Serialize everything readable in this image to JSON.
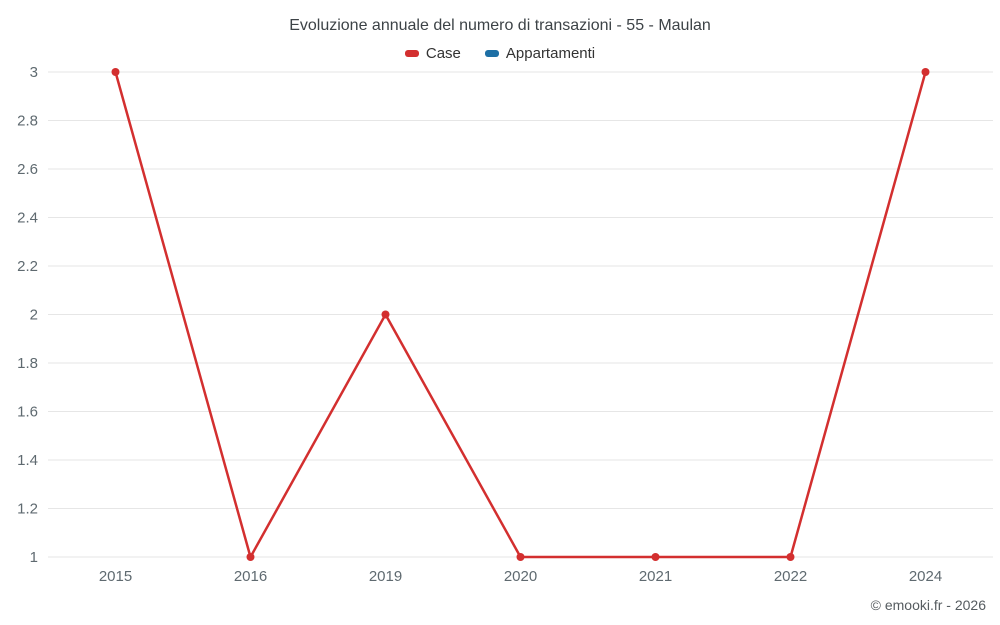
{
  "footer": "© emooki.fr - 2026",
  "colors": {
    "case_red": "#d32f2f",
    "appartamenti_blue": "#1d6fa5",
    "gridline": "#e6e6e6",
    "tick_label": "#5f6a70",
    "title_text": "#3d4347"
  },
  "chart_data": {
    "type": "line",
    "title": "Evoluzione annuale del numero di transazioni - 55 - Maulan",
    "categories": [
      "2015",
      "2016",
      "2019",
      "2020",
      "2021",
      "2022",
      "2024"
    ],
    "series": [
      {
        "name": "Case",
        "color": "#d32f2f",
        "values": [
          3,
          1,
          2,
          1,
          1,
          1,
          3
        ]
      },
      {
        "name": "Appartamenti",
        "color": "#1d6fa5",
        "values": []
      }
    ],
    "xlabel": "",
    "ylabel": "",
    "ylim": [
      1,
      3
    ],
    "yticks": [
      1,
      1.2,
      1.4,
      1.6,
      1.8,
      2,
      2.2,
      2.4,
      2.6,
      2.8,
      3
    ],
    "grid": true,
    "legend_position": "top",
    "marker": "circle"
  }
}
